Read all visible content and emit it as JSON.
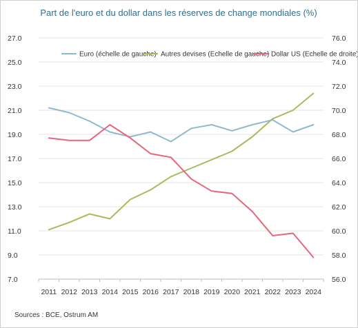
{
  "chart_data": {
    "type": "line",
    "title": "Part de l'euro et du dollar dans les réserves de change mondiales (%)",
    "categories": [
      "2011",
      "2012",
      "2013",
      "2014",
      "2015",
      "2016",
      "2017",
      "2018",
      "2019",
      "2020",
      "2021",
      "2022",
      "2023",
      "2024"
    ],
    "y_left": {
      "ylim": [
        7.0,
        27.0
      ],
      "ticks": [
        "27.0",
        "25.0",
        "23.0",
        "21.0",
        "19.0",
        "17.0",
        "15.0",
        "13.0",
        "11.0",
        "9.0",
        "7.0"
      ]
    },
    "y_right": {
      "ylim": [
        56.0,
        76.0
      ],
      "ticks": [
        "76.0",
        "74.0",
        "72.0",
        "70.0",
        "68.0",
        "66.0",
        "64.0",
        "62.0",
        "60.0",
        "58.0",
        "56.0"
      ]
    },
    "series": [
      {
        "name": "Euro (échelle de gauche)",
        "axis": "left",
        "color": "#8fb8d0",
        "values": [
          21.2,
          20.8,
          20.1,
          19.2,
          18.8,
          19.2,
          18.4,
          19.5,
          19.8,
          19.3,
          19.8,
          20.2,
          19.2,
          19.8
        ]
      },
      {
        "name": "Autres devises (Echelle de gauche)",
        "axis": "left",
        "color": "#a7bb5a",
        "values": [
          11.1,
          11.7,
          12.4,
          12.0,
          13.6,
          14.4,
          15.5,
          16.2,
          16.9,
          17.6,
          18.8,
          20.3,
          21.0,
          22.4
        ]
      },
      {
        "name": "Dollar US (Echelle de droite)",
        "axis": "right",
        "color": "#e8647a",
        "values": [
          67.7,
          67.5,
          67.5,
          68.8,
          67.7,
          66.4,
          66.1,
          64.3,
          63.3,
          63.1,
          61.6,
          59.6,
          59.8,
          57.8
        ]
      }
    ],
    "grid": true,
    "legend_position": "top",
    "source": "Sources : BCE, Ostrum AM"
  }
}
